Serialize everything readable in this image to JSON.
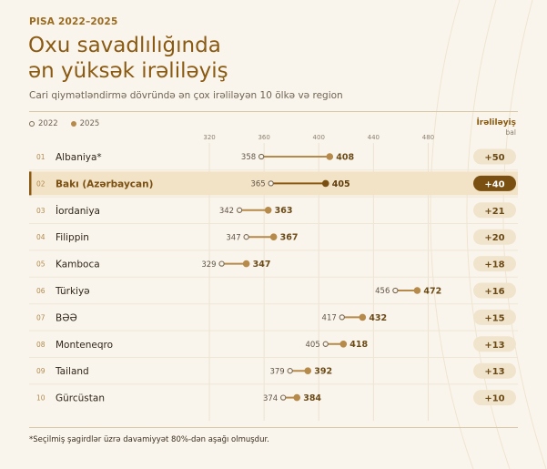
{
  "kicker": "PISA 2022–2025",
  "title_line1": "Oxu savadlılığında",
  "title_line2": "ən yüksək irəliləyiş",
  "subtitle": "Cari qiymətləndirmə dövründə ən çox irəliləyən 10 ölkə və region",
  "legend": {
    "from": "2022",
    "to": "2025"
  },
  "delta_header": {
    "title": "İrəliləyiş",
    "unit": "bal"
  },
  "footnote": "*Seçilmiş şagirdlər üzrə davamiyyət 80%-dən aşağı olmuşdur.",
  "colors": {
    "accent": "#8a5a12",
    "dot_fill": "#b58a4a",
    "highlight_bg": "#f3e3c6",
    "highlight_badge": "#7a4f12",
    "badge": "#f1e4cc"
  },
  "chart_data": {
    "type": "dumbbell",
    "x_ticks": [
      320,
      360,
      400,
      440,
      480
    ],
    "xlim": [
      300,
      505
    ],
    "series_names": [
      "2022",
      "2025"
    ],
    "highlight_rank": "02",
    "rows": [
      {
        "rank": "01",
        "name": "Albaniya*",
        "from": 358,
        "to": 408,
        "delta": "+50"
      },
      {
        "rank": "02",
        "name": "Bakı (Azərbaycan)",
        "from": 365,
        "to": 405,
        "delta": "+40"
      },
      {
        "rank": "03",
        "name": "İordaniya",
        "from": 342,
        "to": 363,
        "delta": "+21"
      },
      {
        "rank": "04",
        "name": "Filippin",
        "from": 347,
        "to": 367,
        "delta": "+20"
      },
      {
        "rank": "05",
        "name": "Kamboca",
        "from": 329,
        "to": 347,
        "delta": "+18"
      },
      {
        "rank": "06",
        "name": "Türkiyə",
        "from": 456,
        "to": 472,
        "delta": "+16"
      },
      {
        "rank": "07",
        "name": "BƏƏ",
        "from": 417,
        "to": 432,
        "delta": "+15"
      },
      {
        "rank": "08",
        "name": "Monteneqro",
        "from": 405,
        "to": 418,
        "delta": "+13"
      },
      {
        "rank": "09",
        "name": "Tailand",
        "from": 379,
        "to": 392,
        "delta": "+13"
      },
      {
        "rank": "10",
        "name": "Gürcüstan",
        "from": 374,
        "to": 384,
        "delta": "+10"
      }
    ]
  }
}
